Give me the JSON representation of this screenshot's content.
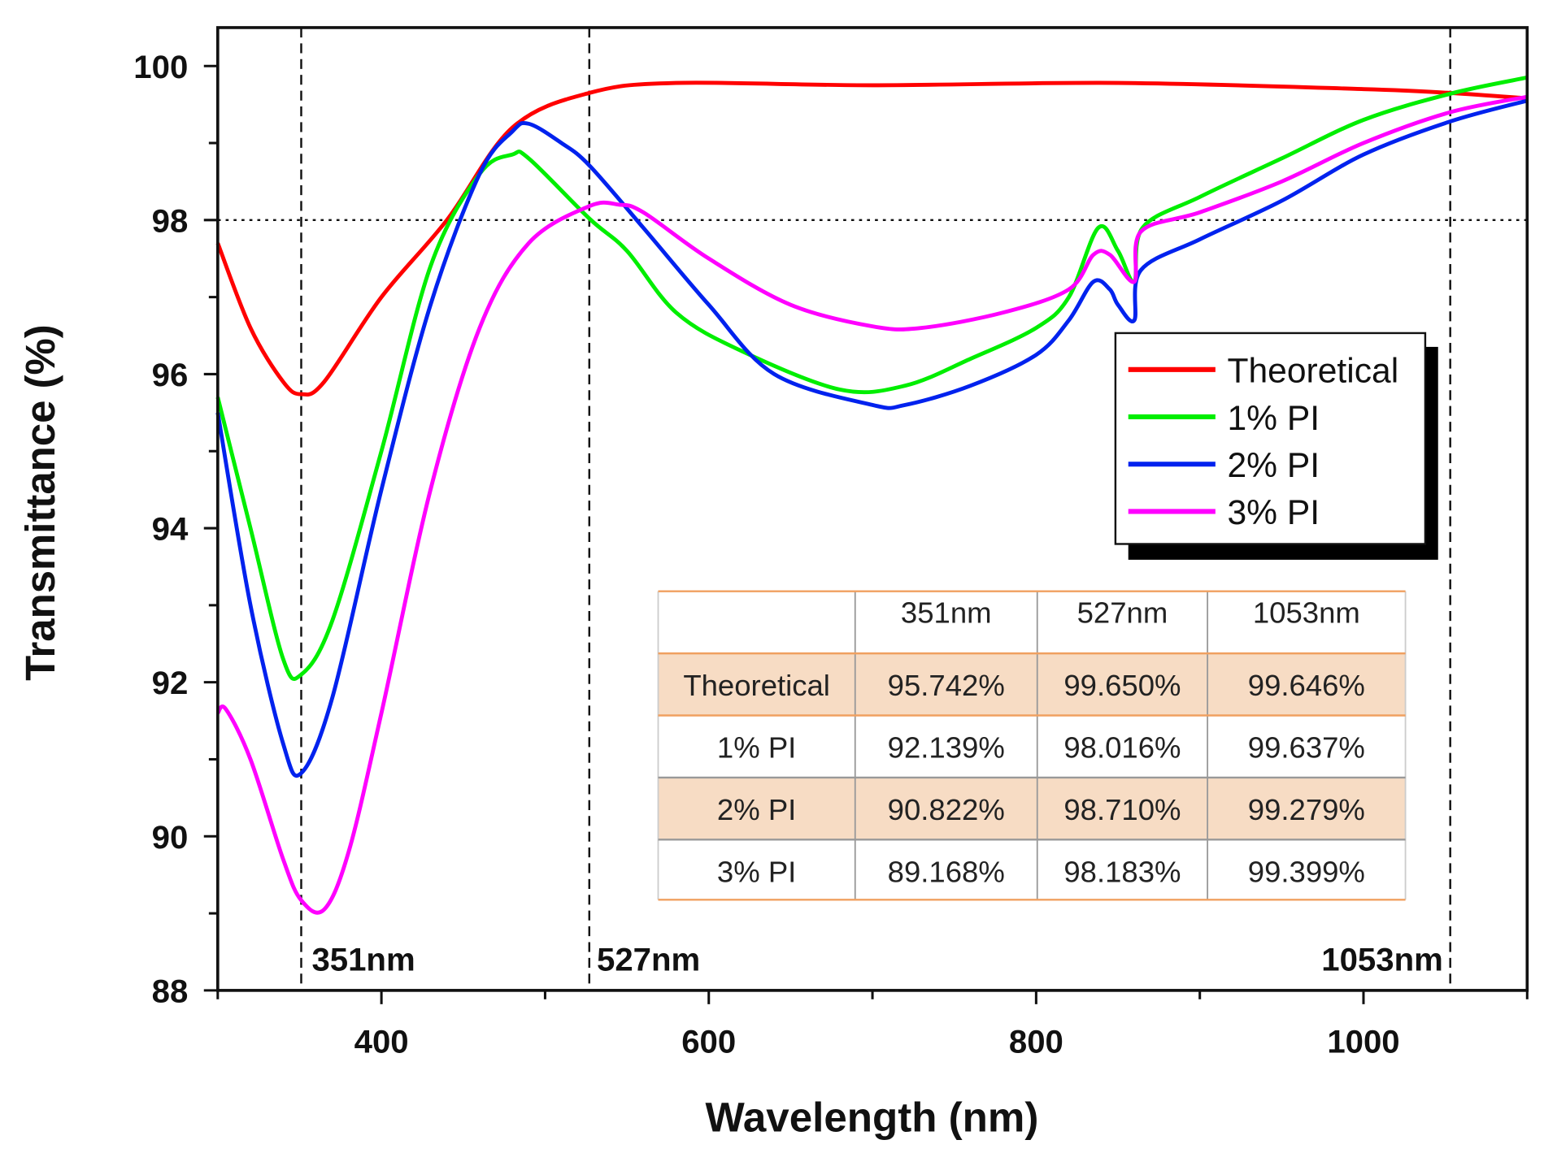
{
  "chart_data": {
    "type": "line",
    "xlabel": "Wavelength (nm)",
    "ylabel": "Transmittance (%)",
    "xlim": [
      300,
      1100
    ],
    "ylim": [
      88,
      100.5
    ],
    "xticks": [
      400,
      600,
      800,
      1000
    ],
    "yticks": [
      88,
      90,
      92,
      94,
      96,
      98,
      100
    ],
    "grid": false,
    "legend_position": "right",
    "reference_lines": {
      "vertical": [
        351,
        527,
        1053
      ],
      "horizontal": [
        98
      ]
    },
    "annotations": [
      "351nm",
      "527nm",
      "1053nm"
    ],
    "series": [
      {
        "name": "Theoretical",
        "color": "#ff0000",
        "x": [
          300,
          320,
          340,
          351,
          365,
          400,
          440,
          480,
          527,
          580,
          700,
          850,
          1000,
          1053,
          1100
        ],
        "y": [
          97.7,
          96.6,
          95.9,
          95.74,
          95.9,
          97.0,
          98.0,
          99.2,
          99.65,
          99.78,
          99.75,
          99.78,
          99.7,
          99.65,
          99.58
        ]
      },
      {
        "name": "1% PI",
        "color": "#00ee00",
        "x": [
          300,
          320,
          340,
          351,
          370,
          400,
          430,
          460,
          480,
          490,
          527,
          550,
          580,
          620,
          680,
          720,
          760,
          800,
          820,
          838,
          850,
          860,
          865,
          900,
          950,
          1000,
          1053,
          1100
        ],
        "y": [
          95.7,
          94.0,
          92.3,
          92.1,
          92.8,
          95.0,
          97.4,
          98.6,
          98.85,
          98.8,
          98.02,
          97.6,
          96.8,
          96.3,
          95.8,
          95.85,
          96.2,
          96.6,
          97.0,
          97.9,
          97.6,
          97.2,
          97.9,
          98.3,
          98.8,
          99.3,
          99.64,
          99.85
        ]
      },
      {
        "name": "2% PI",
        "color": "#0022ee",
        "x": [
          300,
          320,
          340,
          351,
          370,
          400,
          430,
          460,
          480,
          490,
          510,
          527,
          560,
          600,
          640,
          700,
          720,
          760,
          800,
          820,
          835,
          845,
          850,
          860,
          864,
          900,
          950,
          1000,
          1053,
          1100
        ],
        "y": [
          95.5,
          93.0,
          91.2,
          90.82,
          91.8,
          94.5,
          96.9,
          98.6,
          99.15,
          99.25,
          99.0,
          98.71,
          97.9,
          96.9,
          96.0,
          95.6,
          95.6,
          95.85,
          96.25,
          96.7,
          97.2,
          97.1,
          96.9,
          96.7,
          97.35,
          97.75,
          98.25,
          98.85,
          99.28,
          99.55
        ]
      },
      {
        "name": "3% PI",
        "color": "#ff00ff",
        "x": [
          300,
          305,
          320,
          340,
          351,
          365,
          380,
          400,
          430,
          460,
          490,
          527,
          545,
          560,
          600,
          650,
          700,
          730,
          780,
          820,
          835,
          845,
          860,
          864,
          900,
          950,
          1000,
          1053,
          1100
        ],
        "y": [
          91.6,
          91.65,
          91.0,
          89.7,
          89.17,
          89.05,
          89.8,
          91.6,
          94.5,
          96.6,
          97.7,
          98.18,
          98.2,
          98.1,
          97.5,
          96.9,
          96.62,
          96.6,
          96.8,
          97.1,
          97.55,
          97.55,
          97.2,
          97.85,
          98.1,
          98.5,
          99.0,
          99.4,
          99.6
        ]
      }
    ],
    "table": {
      "columns": [
        "",
        "351nm",
        "527nm",
        "1053nm"
      ],
      "rows": [
        [
          "Theoretical",
          "95.742%",
          "99.650%",
          "99.646%"
        ],
        [
          "1% PI",
          "92.139%",
          "98.016%",
          "99.637%"
        ],
        [
          "2% PI",
          "90.822%",
          "98.710%",
          "99.279%"
        ],
        [
          "3% PI",
          "89.168%",
          "98.183%",
          "99.399%"
        ]
      ],
      "shade_color": "#f7dcc4",
      "border_color": "#f0a060"
    }
  }
}
